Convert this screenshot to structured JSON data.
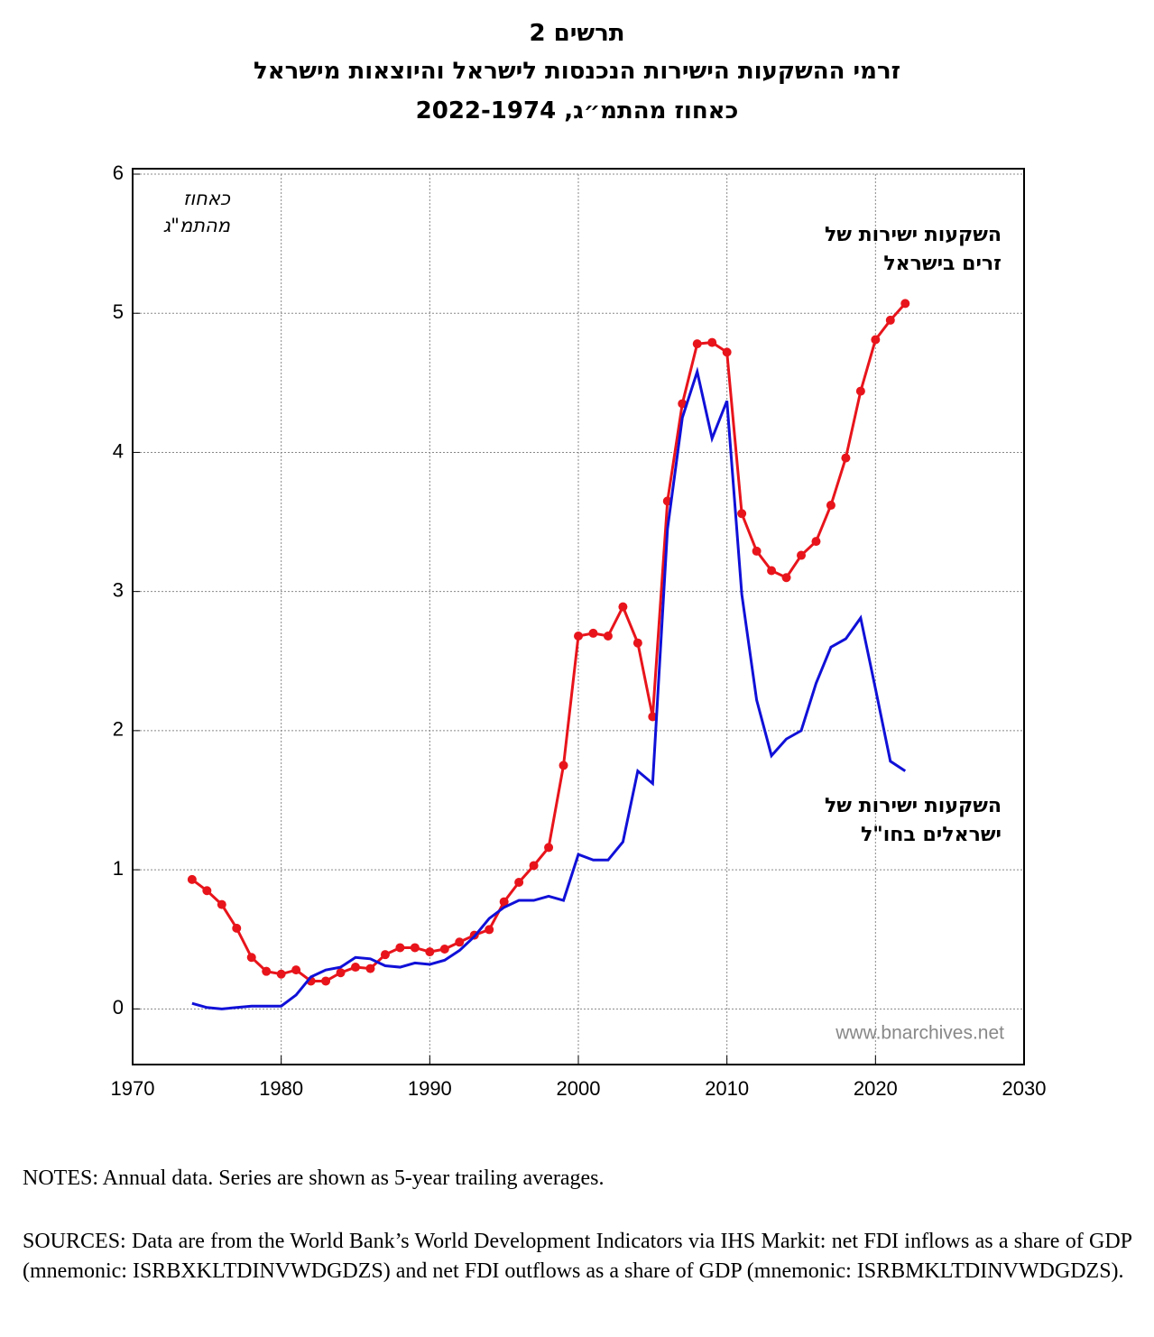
{
  "chart_data": {
    "type": "line",
    "title": "תרשים 2",
    "subtitle": "זרמי ההשקעות הישירות הנכנסות לישראל והיוצאות מישראל",
    "subtitle2": "כאחוז מהתמ״ג, 2022-1974",
    "y_label": "כאחוז\nמהתמ\"ג",
    "watermark": "www.bnarchives.net",
    "x": [
      1974,
      1975,
      1976,
      1977,
      1978,
      1979,
      1980,
      1981,
      1982,
      1983,
      1984,
      1985,
      1986,
      1987,
      1988,
      1989,
      1990,
      1991,
      1992,
      1993,
      1994,
      1995,
      1996,
      1997,
      1998,
      1999,
      2000,
      2001,
      2002,
      2003,
      2004,
      2005,
      2006,
      2007,
      2008,
      2009,
      2010,
      2011,
      2012,
      2013,
      2014,
      2015,
      2016,
      2017,
      2018,
      2019,
      2020,
      2021,
      2022
    ],
    "series": [
      {
        "name": "השקעות ישירות של\nזרים בישראל",
        "color": "#e8141b",
        "markers": true,
        "values": [
          0.93,
          0.85,
          0.75,
          0.58,
          0.37,
          0.27,
          0.25,
          0.28,
          0.2,
          0.2,
          0.26,
          0.3,
          0.29,
          0.39,
          0.44,
          0.44,
          0.41,
          0.43,
          0.48,
          0.53,
          0.57,
          0.77,
          0.91,
          1.03,
          1.16,
          1.75,
          2.68,
          2.7,
          2.68,
          2.89,
          2.63,
          2.1,
          3.65,
          4.35,
          4.78,
          4.79,
          4.72,
          3.56,
          3.29,
          3.15,
          3.1,
          3.26,
          3.36,
          3.62,
          3.96,
          4.44,
          4.81,
          4.95,
          5.07
        ]
      },
      {
        "name": "השקעות ישירות של\nישראלים בחו\"ל",
        "color": "#1010d8",
        "markers": false,
        "values": [
          0.04,
          0.01,
          0.0,
          0.01,
          0.02,
          0.02,
          0.02,
          0.1,
          0.23,
          0.28,
          0.3,
          0.37,
          0.36,
          0.31,
          0.3,
          0.33,
          0.32,
          0.35,
          0.42,
          0.52,
          0.65,
          0.73,
          0.78,
          0.78,
          0.81,
          0.78,
          1.11,
          1.07,
          1.07,
          1.2,
          1.71,
          1.62,
          3.45,
          4.25,
          4.58,
          4.1,
          4.37,
          2.98,
          2.22,
          1.82,
          1.94,
          2.0,
          2.34,
          2.6,
          2.66,
          2.81,
          2.3,
          1.78,
          1.71
        ]
      }
    ],
    "xlim": [
      1970,
      2030
    ],
    "xticks": [
      1970,
      1980,
      1990,
      2000,
      2010,
      2020,
      2030
    ],
    "ylim": [
      -0.4,
      6
    ],
    "yticks": [
      0,
      1,
      2,
      3,
      4,
      5,
      6
    ],
    "grid": true,
    "notes": "NOTES: Annual data. Series are shown as 5-year trailing averages.",
    "sources": "SOURCES: Data are from the World Bank’s World Development Indicators via IHS Markit: net FDI inflows as a share of GDP (mnemonic: ISRBXKLTDINVWDGDZS) and net FDI outflows as a share of GDP (mnemonic: ISRBMKLTDINVWDGDZS)."
  }
}
